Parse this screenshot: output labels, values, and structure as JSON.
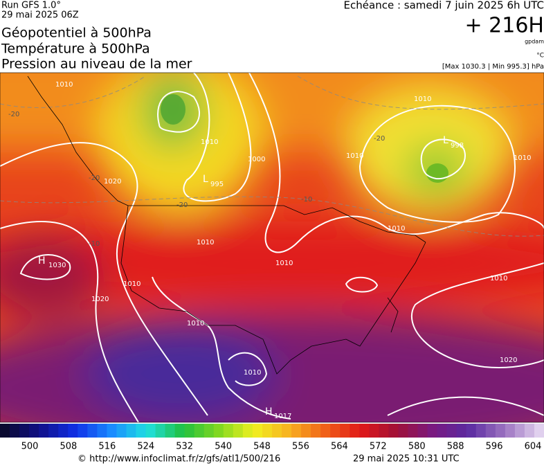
{
  "header": {
    "run": "Run GFS 1.0°",
    "run_date": "29 mai 2025 06Z",
    "valid": "Echéance : samedi 7 juin 2025 6h UTC",
    "lead": "+ 216H",
    "unit_height": "gpdam",
    "unit_temp": "°C",
    "pressure_range": "[Max 1030.3 | Min 995.3] hPa"
  },
  "titles": [
    "Géopotentiel à 500hPa",
    "Température à 500hPa",
    "Pression au niveau de la mer"
  ],
  "centers": [
    {
      "type": "H",
      "value": 1030
    },
    {
      "type": "L",
      "value": 995
    },
    {
      "type": "L",
      "value": 998
    },
    {
      "type": "H",
      "value": 1017
    }
  ],
  "isobar_labels": [
    "1010",
    "1010",
    "1020",
    "1020",
    "1010",
    "1000",
    "1010",
    "1010",
    "1010",
    "1010",
    "1010",
    "1010",
    "1020",
    "1010",
    "1010",
    "1010"
  ],
  "temp_labels": [
    "-20",
    "-20",
    "-20",
    "-10",
    "-10",
    "-20"
  ],
  "colorbar": {
    "ticks": [
      500,
      508,
      516,
      524,
      532,
      540,
      548,
      556,
      564,
      572,
      580,
      588,
      596,
      604
    ],
    "stops": [
      "#0a0a30",
      "#10108a",
      "#1030e8",
      "#1a8cff",
      "#20e0e0",
      "#20c040",
      "#80d820",
      "#f0f020",
      "#f8b020",
      "#f06018",
      "#e01818",
      "#a01038",
      "#7a1a80",
      "#5a2aa0",
      "#9a70c0",
      "#e0d0ee"
    ]
  },
  "footer": {
    "source": "© http://www.infoclimat.fr/z/gfs/atl1/500/216",
    "generated": "29 mai 2025 10:31 UTC"
  }
}
